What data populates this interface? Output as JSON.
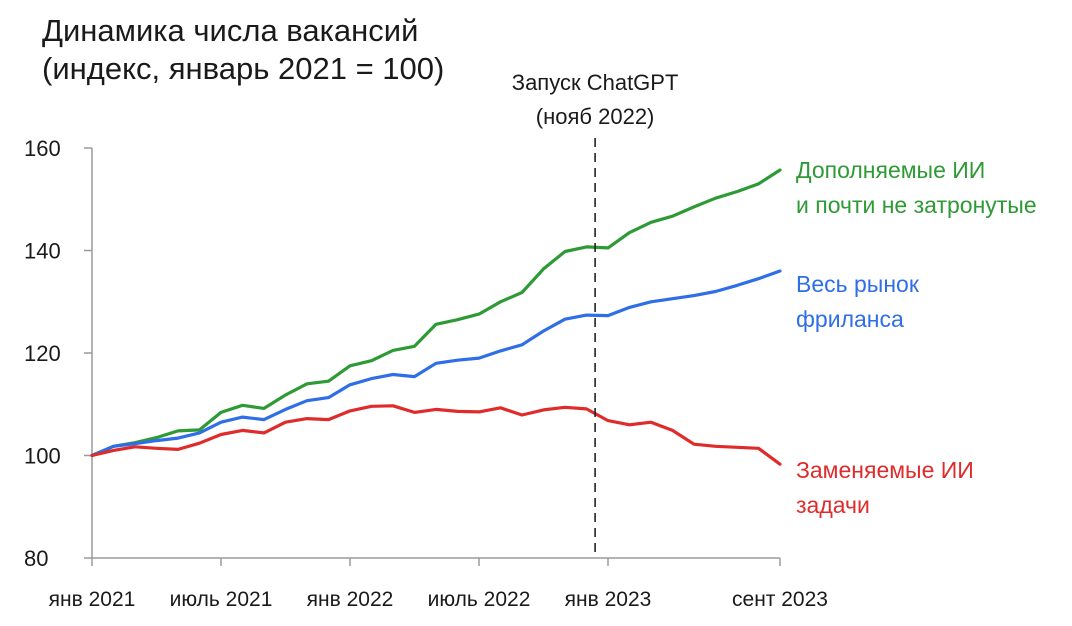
{
  "title": {
    "line1": "Динамика числа вакансий",
    "line2": "(индекс, январь 2021 = 100)"
  },
  "chart_data": {
    "type": "line",
    "ylim": [
      80,
      160
    ],
    "yticks": [
      80,
      100,
      120,
      140,
      160
    ],
    "xtick_labels": [
      {
        "label": "янв 2021",
        "x": 0
      },
      {
        "label": "июль 2021",
        "x": 6
      },
      {
        "label": "янв 2022",
        "x": 12
      },
      {
        "label": "июль 2022",
        "x": 18
      },
      {
        "label": "янв 2023",
        "x": 24
      },
      {
        "label": "сент 2023",
        "x": 32
      }
    ],
    "x": [
      0,
      1,
      2,
      3,
      4,
      5,
      6,
      7,
      8,
      9,
      10,
      11,
      12,
      13,
      14,
      15,
      16,
      17,
      18,
      19,
      20,
      21,
      22,
      23,
      24,
      25,
      26,
      27,
      28,
      29,
      30,
      31,
      32
    ],
    "annotation": {
      "line1": "Запуск ChatGPT",
      "line2": "(нояб 2022)",
      "x": 23.4
    },
    "series": [
      {
        "name_lines": [
          "Дополняемые ИИ",
          "и почти не затронутые"
        ],
        "color": "#2e9a35",
        "values": [
          100,
          101.8,
          102.5,
          103.5,
          104.8,
          105,
          108.4,
          109.8,
          109.2,
          111.8,
          114,
          114.5,
          117.5,
          118.5,
          120.5,
          121.3,
          125.6,
          126.5,
          127.6,
          130,
          131.8,
          136.4,
          139.8,
          140.7,
          140.5,
          143.5,
          145.5,
          146.7,
          148.5,
          150.2,
          151.5,
          153,
          155.7
        ]
      },
      {
        "name_lines": [
          "Весь рынок",
          "фриланса"
        ],
        "color": "#2f6ee6",
        "values": [
          100,
          101.8,
          102.3,
          102.9,
          103.4,
          104.4,
          106.5,
          107.5,
          107,
          109,
          110.7,
          111.3,
          113.8,
          115,
          115.8,
          115.4,
          118,
          118.6,
          119,
          120.4,
          121.6,
          124.3,
          126.6,
          127.4,
          127.3,
          128.9,
          130,
          130.6,
          131.2,
          132,
          133.2,
          134.5,
          136
        ]
      },
      {
        "name_lines": [
          "Заменяемые ИИ",
          "задачи"
        ],
        "color": "#e02b2b",
        "values": [
          100,
          101,
          101.7,
          101.4,
          101.2,
          102.4,
          104.1,
          104.9,
          104.4,
          106.5,
          107.2,
          107,
          108.7,
          109.6,
          109.7,
          108.4,
          109,
          108.6,
          108.5,
          109.3,
          107.9,
          108.9,
          109.4,
          109.1,
          106.8,
          106,
          106.5,
          104.9,
          102.2,
          101.8,
          101.6,
          101.4,
          98.3
        ]
      }
    ]
  }
}
